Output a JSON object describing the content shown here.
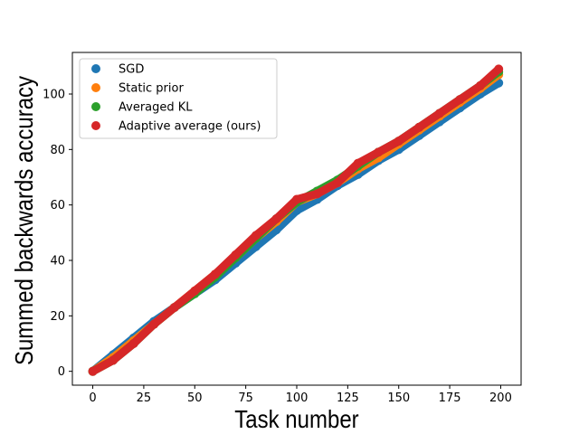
{
  "chart_data": {
    "type": "scatter",
    "xlabel": "Task number",
    "ylabel": "Summed backwards accuracy",
    "xlim": [
      -10,
      210
    ],
    "ylim": [
      -5,
      115
    ],
    "xticks": [
      0,
      25,
      50,
      75,
      100,
      125,
      150,
      175,
      200
    ],
    "yticks": [
      0,
      20,
      40,
      60,
      80,
      100
    ],
    "grid": false,
    "legend_position": "top-left",
    "x": [
      0,
      10,
      20,
      30,
      40,
      50,
      60,
      70,
      80,
      90,
      100,
      110,
      120,
      130,
      140,
      150,
      160,
      170,
      180,
      190,
      199
    ],
    "series": [
      {
        "name": "SGD",
        "color": "#1f77b4",
        "values": [
          0,
          6,
          12,
          18,
          23,
          28,
          33,
          39,
          45,
          51,
          58,
          62,
          67,
          71,
          76,
          80,
          85,
          90,
          95,
          100,
          104
        ]
      },
      {
        "name": "Static prior",
        "color": "#ff7f0e",
        "values": [
          0,
          5,
          11,
          17,
          23,
          29,
          35,
          41,
          48,
          54,
          61,
          64,
          68,
          73,
          77,
          82,
          87,
          92,
          97,
          102,
          107
        ]
      },
      {
        "name": "Averaged KL",
        "color": "#2ca02c",
        "values": [
          0,
          4,
          10,
          17,
          23,
          28,
          34,
          41,
          48,
          55,
          61,
          65,
          69,
          74,
          79,
          83,
          88,
          93,
          98,
          103,
          108
        ]
      },
      {
        "name": "Adaptive average (ours)",
        "color": "#d62728",
        "values": [
          0,
          4,
          10,
          17,
          23,
          29,
          35,
          42,
          49,
          55,
          62,
          64,
          68,
          75,
          79,
          83,
          88,
          93,
          98,
          103,
          109
        ]
      }
    ]
  }
}
